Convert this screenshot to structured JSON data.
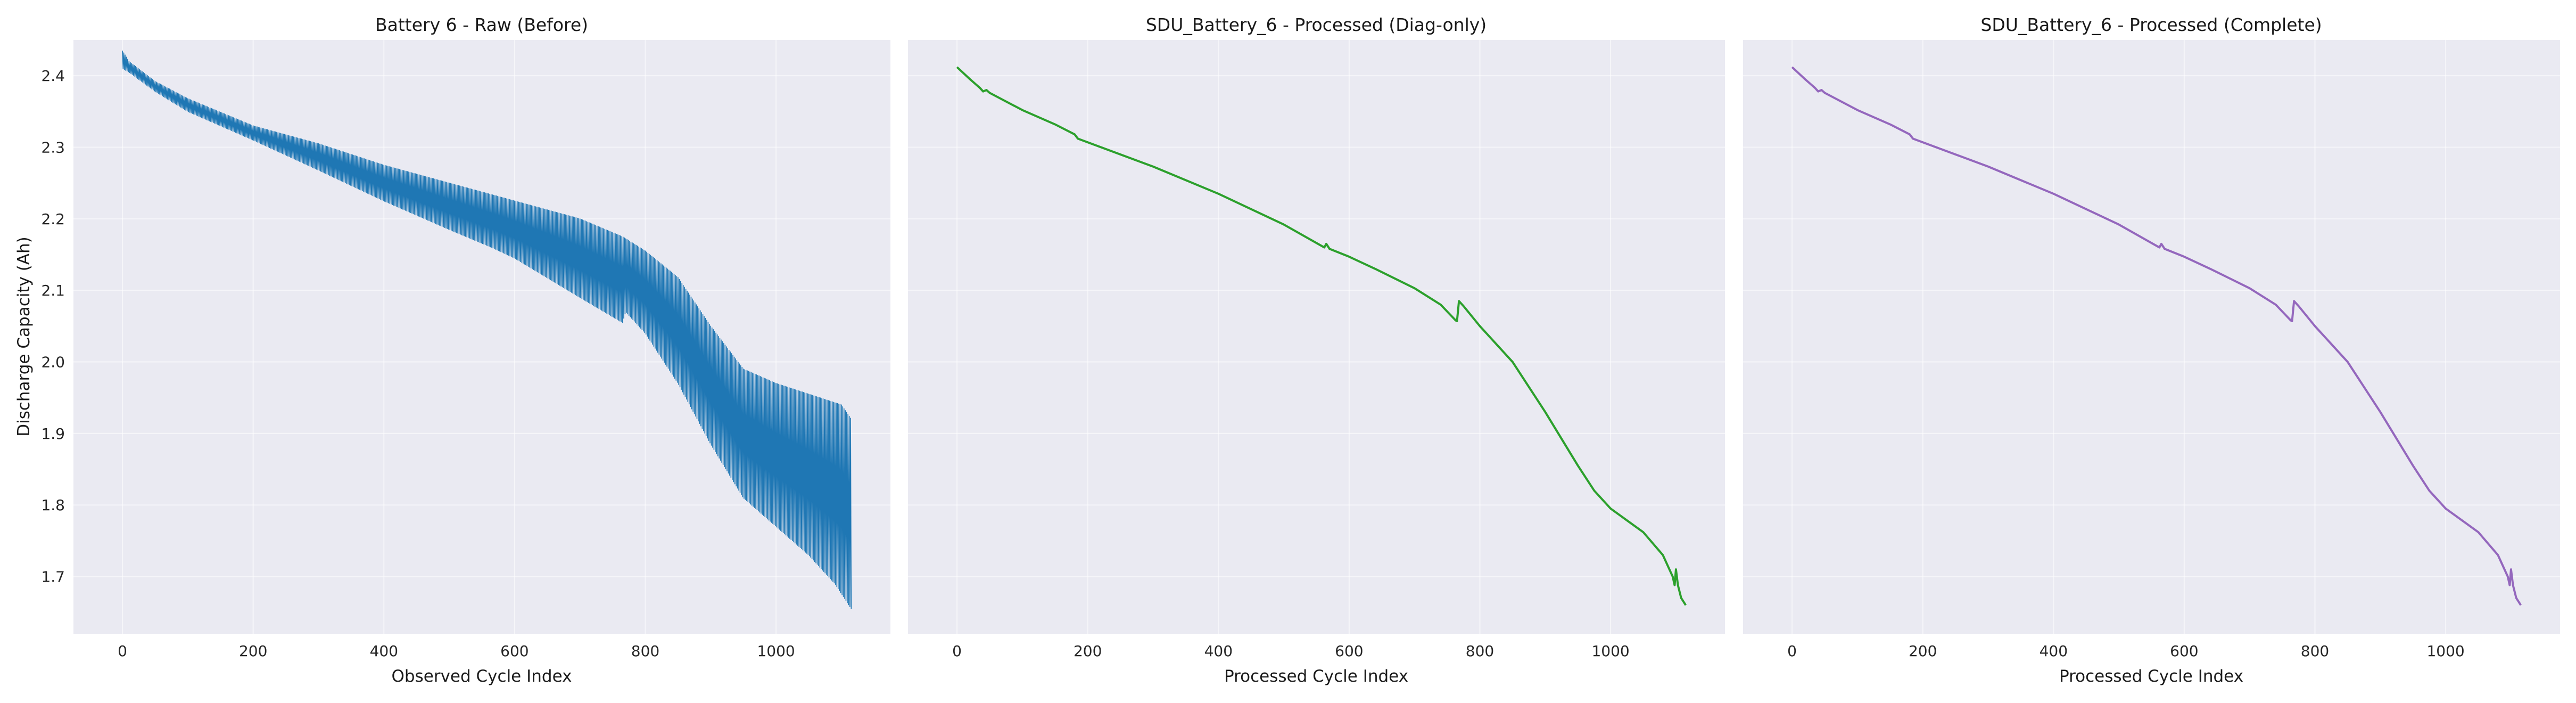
{
  "chart_data": [
    {
      "type": "line",
      "title": "Battery 6 - Raw (Before)",
      "xlabel": "Observed Cycle Index",
      "ylabel": "Discharge Capacity (Ah)",
      "xlim": [
        -75,
        1175
      ],
      "ylim": [
        1.62,
        2.45
      ],
      "xticks": [
        0,
        200,
        400,
        600,
        800,
        1000
      ],
      "yticks": [
        1.7,
        1.8,
        1.9,
        2.0,
        2.1,
        2.2,
        2.3,
        2.4
      ],
      "grid": true,
      "color": "#1f77b4",
      "style": "oscillating",
      "series": [
        {
          "upper": [
            [
              0,
              2.435
            ],
            [
              10,
              2.42
            ],
            [
              50,
              2.392
            ],
            [
              100,
              2.368
            ],
            [
              200,
              2.33
            ],
            [
              300,
              2.305
            ],
            [
              400,
              2.275
            ],
            [
              500,
              2.25
            ],
            [
              600,
              2.225
            ],
            [
              700,
              2.2
            ],
            [
              765,
              2.175
            ],
            [
              800,
              2.155
            ],
            [
              850,
              2.118
            ],
            [
              900,
              2.05
            ],
            [
              950,
              1.99
            ],
            [
              1000,
              1.97
            ],
            [
              1050,
              1.955
            ],
            [
              1100,
              1.94
            ],
            [
              1115,
              1.92
            ]
          ],
          "lower": [
            [
              0,
              2.41
            ],
            [
              10,
              2.405
            ],
            [
              50,
              2.378
            ],
            [
              100,
              2.35
            ],
            [
              200,
              2.31
            ],
            [
              300,
              2.268
            ],
            [
              400,
              2.225
            ],
            [
              500,
              2.185
            ],
            [
              565,
              2.16
            ],
            [
              600,
              2.145
            ],
            [
              700,
              2.09
            ],
            [
              765,
              2.055
            ],
            [
              770,
              2.07
            ],
            [
              800,
              2.04
            ],
            [
              850,
              1.97
            ],
            [
              900,
              1.885
            ],
            [
              950,
              1.81
            ],
            [
              1000,
              1.77
            ],
            [
              1050,
              1.73
            ],
            [
              1090,
              1.69
            ],
            [
              1115,
              1.655
            ]
          ]
        }
      ]
    },
    {
      "type": "line",
      "title": "SDU_Battery_6 - Processed (Diag-only)",
      "xlabel": "Processed Cycle Index",
      "ylabel": "",
      "xlim": [
        -75,
        1175
      ],
      "ylim": [
        1.62,
        2.45
      ],
      "xticks": [
        0,
        200,
        400,
        600,
        800,
        1000
      ],
      "yticks": [
        1.7,
        1.8,
        1.9,
        2.0,
        2.1,
        2.2,
        2.3,
        2.4
      ],
      "grid": true,
      "color": "#2ca02c",
      "style": "line",
      "series": [
        {
          "points": [
            [
              0,
              2.412
            ],
            [
              20,
              2.395
            ],
            [
              35,
              2.383
            ],
            [
              40,
              2.378
            ],
            [
              45,
              2.38
            ],
            [
              50,
              2.376
            ],
            [
              100,
              2.352
            ],
            [
              150,
              2.332
            ],
            [
              180,
              2.318
            ],
            [
              185,
              2.312
            ],
            [
              250,
              2.29
            ],
            [
              300,
              2.273
            ],
            [
              400,
              2.235
            ],
            [
              500,
              2.192
            ],
            [
              562,
              2.16
            ],
            [
              565,
              2.165
            ],
            [
              570,
              2.158
            ],
            [
              600,
              2.147
            ],
            [
              640,
              2.13
            ],
            [
              700,
              2.103
            ],
            [
              740,
              2.08
            ],
            [
              763,
              2.058
            ],
            [
              765,
              2.057
            ],
            [
              768,
              2.085
            ],
            [
              775,
              2.078
            ],
            [
              800,
              2.05
            ],
            [
              850,
              2.0
            ],
            [
              900,
              1.93
            ],
            [
              950,
              1.855
            ],
            [
              975,
              1.82
            ],
            [
              1000,
              1.795
            ],
            [
              1050,
              1.762
            ],
            [
              1080,
              1.73
            ],
            [
              1095,
              1.7
            ],
            [
              1098,
              1.688
            ],
            [
              1100,
              1.71
            ],
            [
              1103,
              1.688
            ],
            [
              1108,
              1.67
            ],
            [
              1115,
              1.66
            ]
          ]
        }
      ]
    },
    {
      "type": "line",
      "title": "SDU_Battery_6 - Processed (Complete)",
      "xlabel": "Processed Cycle Index",
      "ylabel": "",
      "xlim": [
        -75,
        1175
      ],
      "ylim": [
        1.62,
        2.45
      ],
      "xticks": [
        0,
        200,
        400,
        600,
        800,
        1000
      ],
      "yticks": [
        1.7,
        1.8,
        1.9,
        2.0,
        2.1,
        2.2,
        2.3,
        2.4
      ],
      "grid": true,
      "color": "#9467bd",
      "style": "line",
      "series": [
        {
          "points": [
            [
              0,
              2.412
            ],
            [
              20,
              2.395
            ],
            [
              35,
              2.383
            ],
            [
              40,
              2.378
            ],
            [
              45,
              2.38
            ],
            [
              50,
              2.376
            ],
            [
              100,
              2.352
            ],
            [
              150,
              2.332
            ],
            [
              180,
              2.318
            ],
            [
              185,
              2.312
            ],
            [
              250,
              2.29
            ],
            [
              300,
              2.273
            ],
            [
              400,
              2.235
            ],
            [
              500,
              2.192
            ],
            [
              562,
              2.16
            ],
            [
              565,
              2.165
            ],
            [
              570,
              2.158
            ],
            [
              600,
              2.147
            ],
            [
              640,
              2.13
            ],
            [
              700,
              2.103
            ],
            [
              740,
              2.08
            ],
            [
              763,
              2.058
            ],
            [
              765,
              2.057
            ],
            [
              768,
              2.085
            ],
            [
              775,
              2.078
            ],
            [
              800,
              2.05
            ],
            [
              850,
              2.0
            ],
            [
              900,
              1.93
            ],
            [
              950,
              1.855
            ],
            [
              975,
              1.82
            ],
            [
              1000,
              1.795
            ],
            [
              1050,
              1.762
            ],
            [
              1080,
              1.73
            ],
            [
              1095,
              1.7
            ],
            [
              1098,
              1.688
            ],
            [
              1100,
              1.71
            ],
            [
              1103,
              1.688
            ],
            [
              1108,
              1.67
            ],
            [
              1115,
              1.66
            ]
          ]
        }
      ]
    }
  ]
}
